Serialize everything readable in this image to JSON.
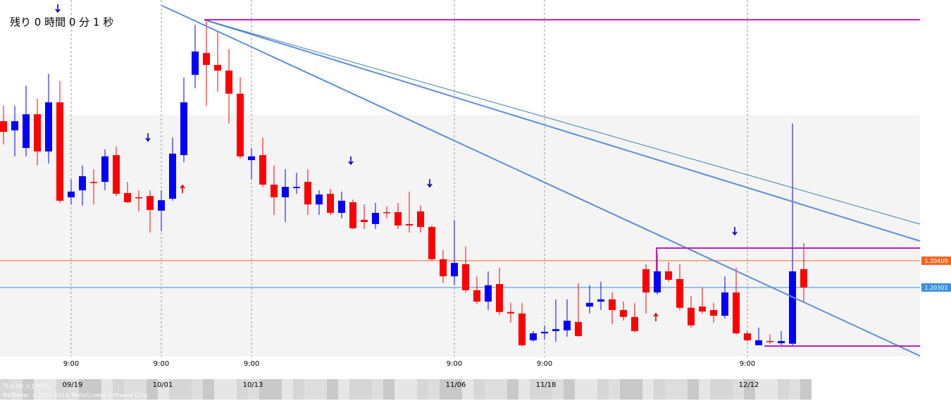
{
  "chart_data": {
    "type": "candlestick",
    "countdown": "残り 0 時間 0 分 1 秒",
    "categories": [
      null,
      null,
      null,
      null,
      null,
      null,
      "09/19",
      null,
      null,
      null,
      null,
      null,
      null,
      null,
      "10/01",
      null,
      null,
      null,
      null,
      null,
      null,
      null,
      "10/13",
      null,
      null,
      null,
      null,
      null,
      null,
      null,
      null,
      null,
      null,
      null,
      null,
      null,
      null,
      null,
      null,
      null,
      "11/06",
      null,
      null,
      null,
      null,
      null,
      null,
      null,
      "11/18",
      null,
      null,
      null,
      null,
      null,
      null,
      null,
      null,
      null,
      null,
      null,
      null,
      null,
      null,
      null,
      null,
      null,
      "12/12",
      null,
      null,
      null,
      null,
      null
    ],
    "category_times": [
      null,
      null,
      null,
      null,
      null,
      null,
      "9:00",
      null,
      null,
      null,
      null,
      null,
      null,
      null,
      "9:00",
      null,
      null,
      null,
      null,
      null,
      null,
      null,
      "9:00",
      null,
      null,
      null,
      null,
      null,
      null,
      null,
      null,
      null,
      null,
      null,
      null,
      null,
      null,
      null,
      null,
      null,
      "9:00",
      null,
      null,
      null,
      null,
      null,
      null,
      null,
      "9:00",
      null,
      null,
      null,
      null,
      null,
      null,
      null,
      null,
      null,
      null,
      null,
      null,
      null,
      null,
      null,
      null,
      null,
      "9:00",
      null,
      null,
      null,
      null,
      null
    ],
    "open": [
      1.20972,
      1.20935,
      1.20864,
      1.21,
      1.2085,
      1.21048,
      1.20665,
      1.20693,
      1.20727,
      1.20727,
      1.20835,
      1.20682,
      1.20665,
      1.2067,
      1.20611,
      1.20659,
      1.20835,
      1.21159,
      1.21247,
      1.21199,
      1.21176,
      1.21083,
      1.20815,
      1.20835,
      1.20716,
      1.20665,
      1.20702,
      1.20727,
      1.20636,
      1.20679,
      1.20602,
      1.20645,
      1.20574,
      1.20557,
      1.20605,
      1.20605,
      1.20557,
      1.20608,
      1.20545,
      1.20415,
      1.20346,
      1.20395,
      1.2029,
      1.20244,
      1.20315,
      1.20202,
      1.20196,
      1.20088,
      1.20116,
      1.20125,
      1.20128,
      1.20162,
      1.20224,
      1.20244,
      1.20253,
      1.2021,
      1.20182,
      1.20375,
      1.20281,
      1.20366,
      1.20335,
      1.20219,
      1.20224,
      1.2021,
      1.20187,
      1.20281,
      1.20116,
      1.20068,
      1.20085,
      1.20076,
      1.20074,
      1.20375
    ],
    "high": [
      1.21034,
      1.21034,
      1.21114,
      1.21063,
      1.21162,
      1.21134,
      1.20736,
      1.20793,
      1.20778,
      1.20858,
      1.20869,
      1.20727,
      1.20693,
      1.20693,
      1.20693,
      1.20906,
      1.21148,
      1.21361,
      1.21375,
      1.21333,
      1.21262,
      1.21148,
      1.20864,
      1.20906,
      1.20793,
      1.20778,
      1.20764,
      1.20778,
      1.20693,
      1.20699,
      1.20688,
      1.20656,
      1.20636,
      1.20642,
      1.20628,
      1.20642,
      1.20688,
      1.20631,
      1.20551,
      1.20452,
      1.20574,
      1.20466,
      1.20346,
      1.20366,
      1.20381,
      1.20239,
      1.20239,
      1.20125,
      1.20148,
      1.20253,
      1.20253,
      1.20318,
      1.2031,
      1.20324,
      1.20281,
      1.20244,
      1.20239,
      1.20395,
      1.20437,
      1.20403,
      1.20395,
      1.20267,
      1.20301,
      1.20239,
      1.20346,
      1.20381,
      1.20125,
      1.20139,
      1.20111,
      1.20125,
      1.20963,
      1.2048
    ],
    "low": [
      1.20878,
      1.2083,
      1.2083,
      1.20793,
      1.20801,
      1.20642,
      1.20636,
      1.20631,
      1.20636,
      1.20693,
      1.2067,
      1.20642,
      1.20608,
      1.20523,
      1.20528,
      1.20651,
      1.20807,
      1.21105,
      1.21034,
      1.21091,
      1.20963,
      1.20821,
      1.20736,
      1.20707,
      1.20594,
      1.20565,
      1.20679,
      1.20594,
      1.20594,
      1.20594,
      1.2058,
      1.20537,
      1.20537,
      1.20537,
      1.2058,
      1.20537,
      1.20523,
      1.20523,
      1.20409,
      1.20318,
      1.2031,
      1.20281,
      1.20233,
      1.2021,
      1.2019,
      1.20159,
      1.20062,
      1.20082,
      1.20091,
      1.20082,
      1.20102,
      1.20102,
      1.20196,
      1.2021,
      1.20153,
      1.20167,
      1.20119,
      1.20196,
      1.20273,
      1.20324,
      1.2021,
      1.20139,
      1.20196,
      1.20159,
      1.20176,
      1.20111,
      1.20082,
      1.20068,
      1.20074,
      1.20068,
      1.20068,
      1.20244
    ],
    "close": [
      1.20929,
      1.20972,
      1.21,
      1.2085,
      1.21048,
      1.20651,
      1.20688,
      1.2075,
      1.20724,
      1.2083,
      1.20679,
      1.20645,
      1.20662,
      1.20614,
      1.20653,
      1.20841,
      1.21048,
      1.21253,
      1.21199,
      1.21176,
      1.21083,
      1.2083,
      1.2083,
      1.20716,
      1.20665,
      1.20707,
      1.20707,
      1.20636,
      1.20676,
      1.20602,
      1.20651,
      1.2054,
      1.20565,
      1.20602,
      1.20605,
      1.20551,
      1.20551,
      1.20545,
      1.20415,
      1.20346,
      1.204,
      1.2029,
      1.20244,
      1.2031,
      1.20202,
      1.20196,
      1.20068,
      1.20116,
      1.20122,
      1.20133,
      1.20167,
      1.20105,
      1.20239,
      1.20253,
      1.2021,
      1.20182,
      1.20125,
      1.20281,
      1.20366,
      1.20332,
      1.20219,
      1.20148,
      1.20204,
      1.20187,
      1.20281,
      1.20116,
      1.20088,
      1.20088,
      1.20082,
      1.20085,
      1.20366,
      1.20301
    ],
    "up_color": "#0000ff",
    "down_color": "#ff0000",
    "ylim": [
      1.20022,
      1.21461
    ],
    "grid": true,
    "price_lines": [
      {
        "value": 1.20409,
        "color": "#f26522"
      },
      {
        "value": 1.20301,
        "color": "#3d8fe0"
      }
    ],
    "footer": [
      "TLp-3w_v.1.01(1)",
      "MXTrader, c 2001-2014, MetaQuotes Software Corp."
    ]
  }
}
